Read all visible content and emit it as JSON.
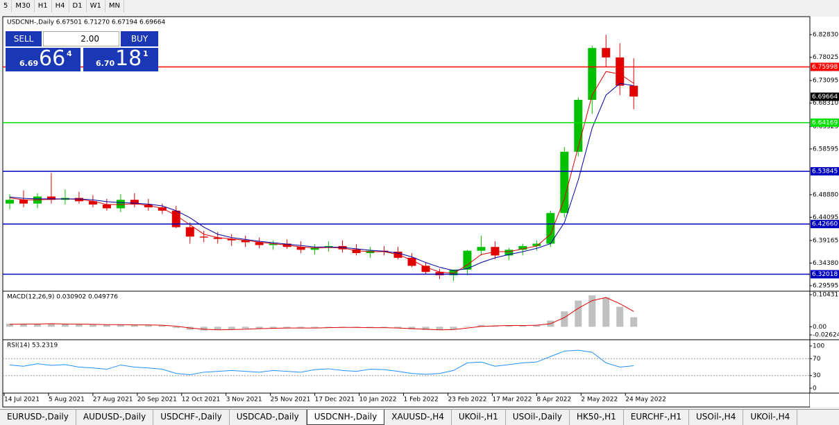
{
  "toolbar": {
    "timeframes": [
      "5",
      "M30",
      "H1",
      "H4",
      "D1",
      "W1",
      "MN"
    ]
  },
  "trade_panel": {
    "sell": "SELL",
    "lots": "2.00",
    "buy": "BUY",
    "bid_prefix": "6.69",
    "bid_big": "66",
    "bid_sup": "4",
    "ask_prefix": "6.70",
    "ask_big": "18",
    "ask_sup": "1"
  },
  "tabs": [
    "EURUSD-,Daily",
    "AUDUSD-,Daily",
    "USDCHF-,Daily",
    "USDCAD-,Daily",
    "USDCNH-,Daily",
    "XAUUSD-,H4",
    "UKOil-,H1",
    "USOil-,Daily",
    "HK50-,H1",
    "EURCHF-,H1",
    "USOil-,H4",
    "UKOil-,H4"
  ],
  "active_tab": 4,
  "chart_data": [
    {
      "type": "candlestick",
      "title": "USDCNH-,Daily 6.67501 6.71270 6.67194 6.69664",
      "x": [
        2,
        7,
        12,
        17,
        22,
        27,
        32,
        37,
        42,
        47,
        52,
        57,
        62,
        67,
        72,
        77,
        82,
        87,
        92,
        97,
        102,
        107,
        112,
        117,
        122,
        127,
        132,
        137,
        142,
        147,
        152,
        157,
        162,
        167,
        172,
        177,
        182,
        187,
        192,
        197,
        202,
        207,
        212,
        217,
        222,
        227
      ],
      "open": [
        6.47,
        6.478,
        6.47,
        6.485,
        6.478,
        6.482,
        6.475,
        6.468,
        6.46,
        6.478,
        6.468,
        6.462,
        6.455,
        6.42,
        6.4,
        6.398,
        6.395,
        6.392,
        6.388,
        6.382,
        6.385,
        6.378,
        6.372,
        6.376,
        6.38,
        6.373,
        6.365,
        6.37,
        6.368,
        6.355,
        6.338,
        6.325,
        6.318,
        6.33,
        6.37,
        6.378,
        6.36,
        6.372,
        6.38,
        6.385,
        6.45,
        6.58,
        6.69,
        6.8,
        6.78,
        6.72
      ],
      "high": [
        6.49,
        6.498,
        6.492,
        6.535,
        6.5,
        6.495,
        6.488,
        6.48,
        6.49,
        6.492,
        6.48,
        6.47,
        6.465,
        6.43,
        6.412,
        6.41,
        6.405,
        6.402,
        6.398,
        6.392,
        6.394,
        6.39,
        6.384,
        6.39,
        6.392,
        6.384,
        6.378,
        6.38,
        6.378,
        6.365,
        6.345,
        6.332,
        6.328,
        6.372,
        6.402,
        6.39,
        6.376,
        6.385,
        6.392,
        6.455,
        6.59,
        6.695,
        6.805,
        6.828,
        6.81,
        6.778
      ],
      "low": [
        6.458,
        6.462,
        6.46,
        6.47,
        6.468,
        6.47,
        6.462,
        6.455,
        6.452,
        6.462,
        6.455,
        6.448,
        6.418,
        6.385,
        6.388,
        6.385,
        6.38,
        6.378,
        6.375,
        6.372,
        6.374,
        6.365,
        6.362,
        6.368,
        6.366,
        6.36,
        6.355,
        6.36,
        6.352,
        6.335,
        6.32,
        6.31,
        6.306,
        6.318,
        6.36,
        6.352,
        6.35,
        6.36,
        6.37,
        6.378,
        6.44,
        6.57,
        6.66,
        6.76,
        6.7,
        6.67
      ],
      "close": [
        6.478,
        6.47,
        6.485,
        6.478,
        6.482,
        6.475,
        6.468,
        6.46,
        6.478,
        6.468,
        6.462,
        6.455,
        6.42,
        6.4,
        6.398,
        6.395,
        6.392,
        6.388,
        6.382,
        6.385,
        6.378,
        6.372,
        6.376,
        6.38,
        6.373,
        6.365,
        6.37,
        6.368,
        6.355,
        6.338,
        6.325,
        6.318,
        6.33,
        6.37,
        6.378,
        6.36,
        6.372,
        6.38,
        6.385,
        6.45,
        6.58,
        6.69,
        6.8,
        6.78,
        6.72,
        6.697
      ],
      "up_color": "#00c000",
      "down_color": "#e00000",
      "moving_averages": [
        {
          "color": "#e00000",
          "values": [
            6.482,
            6.478,
            6.478,
            6.479,
            6.48,
            6.479,
            6.475,
            6.468,
            6.468,
            6.47,
            6.466,
            6.46,
            6.445,
            6.425,
            6.405,
            6.398,
            6.395,
            6.392,
            6.388,
            6.385,
            6.382,
            6.378,
            6.376,
            6.377,
            6.376,
            6.37,
            6.368,
            6.368,
            6.362,
            6.35,
            6.335,
            6.325,
            6.322,
            6.34,
            6.362,
            6.368,
            6.368,
            6.374,
            6.38,
            6.405,
            6.48,
            6.59,
            6.7,
            6.75,
            6.745,
            6.725
          ]
        },
        {
          "color": "#0000a0",
          "values": [
            6.484,
            6.481,
            6.48,
            6.48,
            6.48,
            6.48,
            6.478,
            6.474,
            6.472,
            6.471,
            6.469,
            6.465,
            6.455,
            6.44,
            6.42,
            6.405,
            6.398,
            6.394,
            6.39,
            6.387,
            6.384,
            6.381,
            6.378,
            6.378,
            6.377,
            6.374,
            6.371,
            6.369,
            6.365,
            6.357,
            6.345,
            6.335,
            6.328,
            6.332,
            6.345,
            6.355,
            6.362,
            6.368,
            6.375,
            6.385,
            6.43,
            6.52,
            6.63,
            6.7,
            6.725,
            6.72
          ]
        }
      ],
      "levels": [
        {
          "value": 6.75998,
          "label": "6.75998",
          "color": "#ff0000"
        },
        {
          "value": 6.64169,
          "label": "6.64169",
          "color": "#00e000"
        },
        {
          "value": 6.53845,
          "label": "6.53845",
          "color": "#0000c0"
        },
        {
          "value": 6.4266,
          "label": "6.42660",
          "color": "#0000c0"
        },
        {
          "value": 6.32018,
          "label": "6.32018",
          "color": "#0000c0"
        }
      ],
      "current_price": {
        "value": 6.69664,
        "label": "6.69664"
      },
      "xlim": [
        -0.5,
        290.5
      ],
      "xticks": [
        {
          "value": 0,
          "label": "14 Jul 2021"
        },
        {
          "value": 16,
          "label": "5 Aug 2021"
        },
        {
          "value": 32,
          "label": "27 Aug 2021"
        },
        {
          "value": 48,
          "label": "20 Sep 2021"
        },
        {
          "value": 64,
          "label": "12 Oct 2021"
        },
        {
          "value": 80,
          "label": "3 Nov 2021"
        },
        {
          "value": 96,
          "label": "25 Nov 2021"
        },
        {
          "value": 112,
          "label": "17 Dec 2021"
        },
        {
          "value": 128,
          "label": "10 Jan 2022"
        },
        {
          "value": 144,
          "label": "1 Feb 2022"
        },
        {
          "value": 160,
          "label": "23 Feb 2022"
        },
        {
          "value": 176,
          "label": "17 Mar 2022"
        },
        {
          "value": 192,
          "label": "8 Apr 2022"
        },
        {
          "value": 208,
          "label": "2 May 2022"
        },
        {
          "value": 224,
          "label": "24 May 2022"
        }
      ],
      "ylim": [
        6.2842,
        6.8665
      ],
      "yticks": [
        {
          "value": 6.8283,
          "label": "6.82830"
        },
        {
          "value": 6.78025,
          "label": "6.78025"
        },
        {
          "value": 6.73095,
          "label": "6.73095"
        },
        {
          "value": 6.6831,
          "label": "6.68310"
        },
        {
          "value": 6.63325,
          "label": "6.63325"
        },
        {
          "value": 6.58595,
          "label": "6.58595"
        },
        {
          "value": 6.4888,
          "label": "6.48880"
        },
        {
          "value": 6.44095,
          "label": "6.44095"
        },
        {
          "value": 6.39165,
          "label": "6.39165"
        },
        {
          "value": 6.3438,
          "label": "6.34380"
        },
        {
          "value": 6.29595,
          "label": "6.29595"
        }
      ]
    },
    {
      "type": "macd",
      "title": "MACD(12,26,9) 0.030902 0.049776",
      "x": [
        2,
        7,
        12,
        17,
        22,
        27,
        32,
        37,
        42,
        47,
        52,
        57,
        62,
        67,
        72,
        77,
        82,
        87,
        92,
        97,
        102,
        107,
        112,
        117,
        122,
        127,
        132,
        137,
        142,
        147,
        152,
        157,
        162,
        167,
        172,
        177,
        182,
        187,
        192,
        197,
        202,
        207,
        212,
        217,
        222,
        227
      ],
      "values": [
        0.01,
        0.009,
        0.01,
        0.01,
        0.009,
        0.008,
        0.007,
        0.006,
        0.007,
        0.006,
        0.005,
        0.004,
        -0.004,
        -0.01,
        -0.012,
        -0.01,
        -0.008,
        -0.006,
        -0.005,
        -0.004,
        -0.004,
        -0.004,
        -0.003,
        -0.002,
        -0.002,
        -0.003,
        -0.003,
        -0.003,
        -0.005,
        -0.008,
        -0.01,
        -0.011,
        -0.008,
        0.002,
        0.006,
        0.004,
        0.004,
        0.005,
        0.006,
        0.02,
        0.05,
        0.085,
        0.102,
        0.095,
        0.065,
        0.031
      ],
      "color": "#c0c0c0",
      "signal": {
        "color": "#e00000",
        "values": [
          0.008,
          0.009,
          0.009,
          0.01,
          0.009,
          0.009,
          0.008,
          0.007,
          0.007,
          0.006,
          0.006,
          0.005,
          0.002,
          -0.004,
          -0.008,
          -0.01,
          -0.009,
          -0.008,
          -0.006,
          -0.005,
          -0.004,
          -0.004,
          -0.004,
          -0.003,
          -0.002,
          -0.002,
          -0.003,
          -0.003,
          -0.004,
          -0.006,
          -0.008,
          -0.01,
          -0.009,
          -0.004,
          0.001,
          0.003,
          0.004,
          0.004,
          0.005,
          0.01,
          0.03,
          0.06,
          0.085,
          0.095,
          0.075,
          0.05
        ]
      },
      "ylim": [
        -0.026249,
        0.104313
      ],
      "yticks": [
        0.104313,
        {
          "value": 0,
          "label": "0.00"
        },
        -0.026249
      ]
    },
    {
      "type": "line",
      "title": "RSI(14) 53.2319",
      "x": [
        2,
        7,
        12,
        17,
        22,
        27,
        32,
        37,
        42,
        47,
        52,
        57,
        62,
        67,
        72,
        77,
        82,
        87,
        92,
        97,
        102,
        107,
        112,
        117,
        122,
        127,
        132,
        137,
        142,
        147,
        152,
        157,
        162,
        167,
        172,
        177,
        182,
        187,
        192,
        197,
        202,
        207,
        212,
        217,
        222,
        227
      ],
      "values": [
        55,
        52,
        58,
        54,
        56,
        50,
        48,
        45,
        55,
        50,
        48,
        45,
        35,
        32,
        38,
        40,
        42,
        40,
        38,
        42,
        40,
        38,
        44,
        46,
        42,
        40,
        45,
        44,
        40,
        35,
        33,
        35,
        42,
        60,
        62,
        52,
        56,
        60,
        62,
        75,
        88,
        90,
        85,
        60,
        50,
        53.2319
      ],
      "color": "#1e90ff",
      "ylim": [
        0,
        100
      ],
      "yticks": [
        100,
        70,
        30,
        0
      ]
    }
  ]
}
